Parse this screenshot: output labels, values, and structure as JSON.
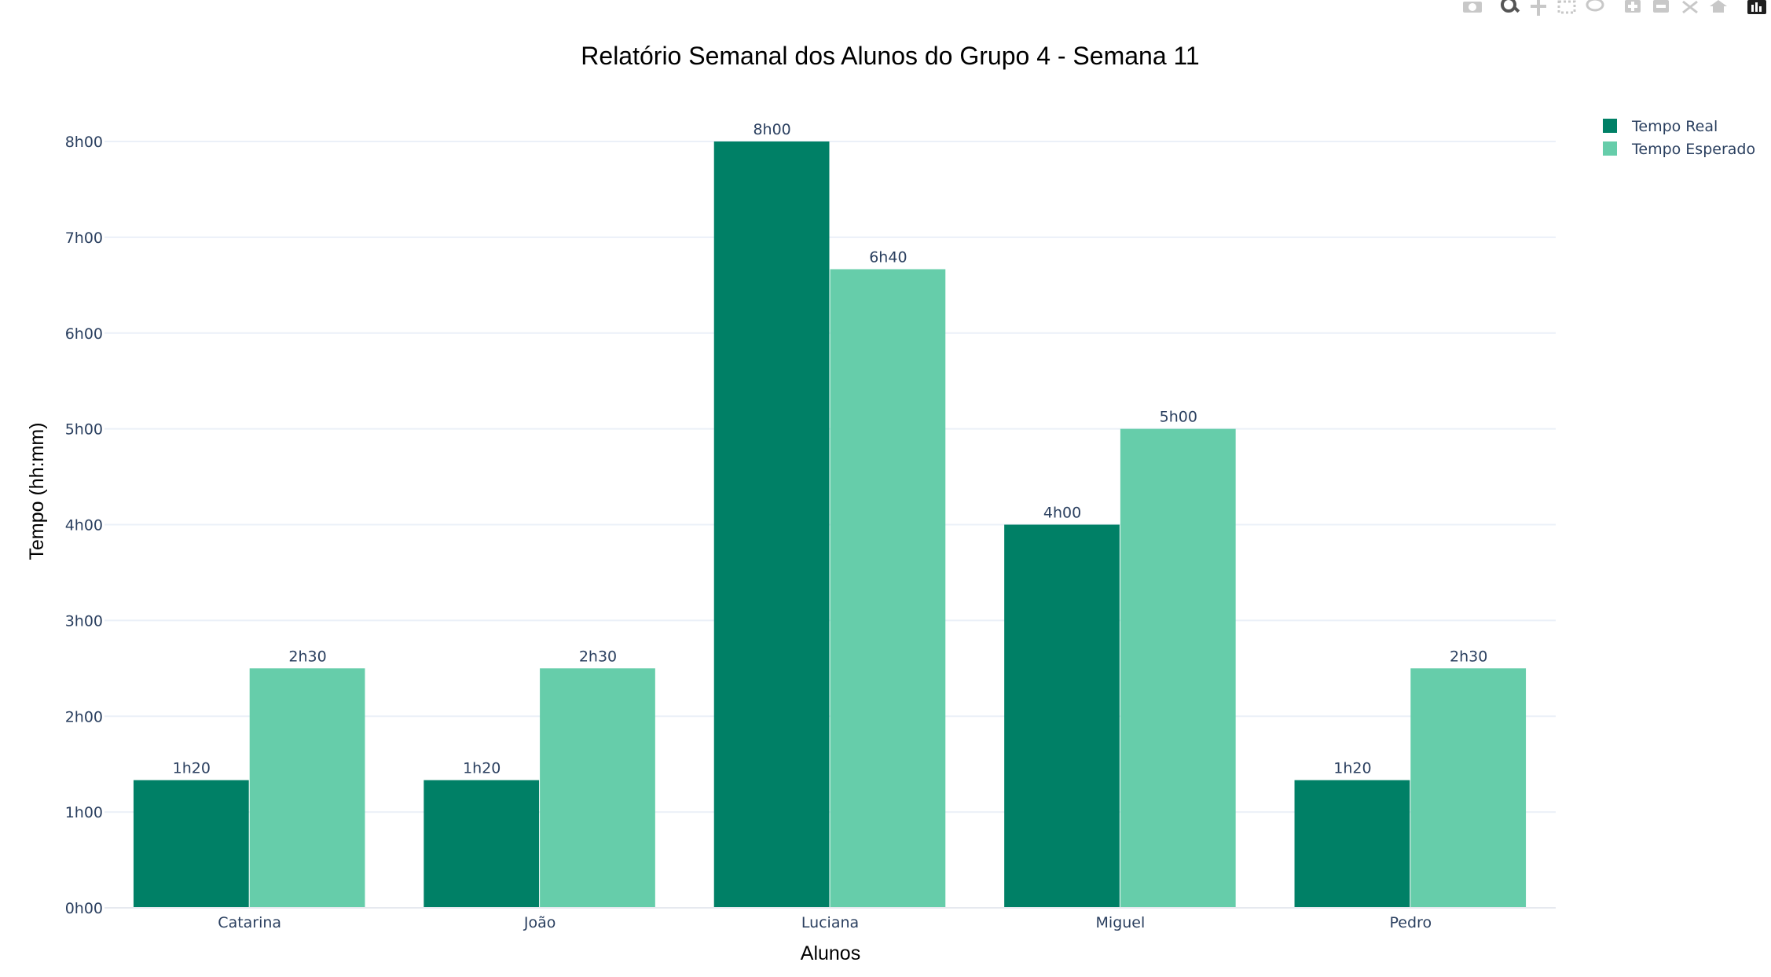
{
  "chart_data": {
    "type": "bar",
    "title": "Relatório Semanal dos Alunos do Grupo 4 - Semana 11",
    "xlabel": "Alunos",
    "ylabel": "Tempo (hh:mm)",
    "categories": [
      "Catarina",
      "João",
      "Luciana",
      "Miguel",
      "Pedro"
    ],
    "ylim_minutes": [
      0,
      480
    ],
    "y_ticks": [
      {
        "minutes": 0,
        "label": "0h00"
      },
      {
        "minutes": 60,
        "label": "1h00"
      },
      {
        "minutes": 120,
        "label": "2h00"
      },
      {
        "minutes": 180,
        "label": "3h00"
      },
      {
        "minutes": 240,
        "label": "4h00"
      },
      {
        "minutes": 300,
        "label": "5h00"
      },
      {
        "minutes": 360,
        "label": "6h00"
      },
      {
        "minutes": 420,
        "label": "7h00"
      },
      {
        "minutes": 480,
        "label": "8h00"
      }
    ],
    "series": [
      {
        "name": "Tempo Real",
        "color": "#008066",
        "values_minutes": [
          80,
          80,
          480,
          240,
          80
        ],
        "labels": [
          "1h20",
          "1h20",
          "8h00",
          "4h00",
          "1h20"
        ]
      },
      {
        "name": "Tempo Esperado",
        "color": "#66cdaa",
        "values_minutes": [
          150,
          150,
          400,
          300,
          150
        ],
        "labels": [
          "2h30",
          "2h30",
          "6h40",
          "5h00",
          "2h30"
        ]
      }
    ],
    "grid": true,
    "legend_position": "top-right"
  },
  "modebar": {
    "icons": [
      "camera-icon",
      "zoom-icon",
      "pan-icon",
      "box-select-icon",
      "lasso-icon",
      "zoom-in-icon",
      "zoom-out-icon",
      "autoscale-icon",
      "home-icon",
      "plotly-logo-icon"
    ]
  }
}
